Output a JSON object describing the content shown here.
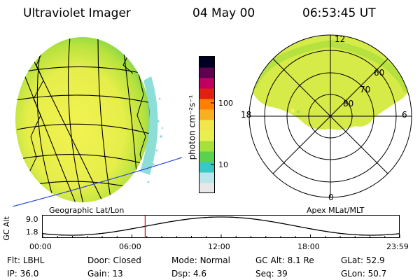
{
  "header": {
    "instrument": "Ultraviolet Imager",
    "date": "04 May 00",
    "time": "06:53:45 UT"
  },
  "globe": {
    "caption": "Geographic Lat/Lon"
  },
  "colorbar": {
    "unit_label": "photon cm⁻²s⁻¹",
    "ticks": [
      "100",
      "10"
    ],
    "stops": [
      "#e8e8e8",
      "#b8e6ea",
      "#38c8c8",
      "#5ad24e",
      "#a8e03a",
      "#e8f050",
      "#f0e84a",
      "#f8b020",
      "#ff7f00",
      "#e02010",
      "#c00060",
      "#600050",
      "#000020"
    ]
  },
  "polar": {
    "caption": "Apex MLat/MLT",
    "mlt_labels": {
      "top": "12",
      "right": "6",
      "bottom": "0",
      "left": "18"
    },
    "lat_labels": [
      "60",
      "70",
      "80"
    ]
  },
  "altitude": {
    "axis_label": "GC Alt",
    "y_ticks": [
      "9.0",
      "1.8"
    ],
    "x_ticks": [
      "00:00",
      "06:00",
      "12:00",
      "18:00",
      "23:59"
    ],
    "current_time_fraction": 0.287,
    "marker_color": "#e00000"
  },
  "info": {
    "row1": [
      {
        "label": "Flt:",
        "value": "LBHL"
      },
      {
        "label": "Door:",
        "value": "Closed"
      },
      {
        "label": "Mode:",
        "value": "Normal"
      },
      {
        "label": "GC Alt:",
        "value": "8.1 Re"
      },
      {
        "label": "GLat:",
        "value": "52.9"
      }
    ],
    "row2": [
      {
        "label": "IP:",
        "value": "36.0"
      },
      {
        "label": "Gain:",
        "value": "13"
      },
      {
        "label": "Dsp:",
        "value": "4.6"
      },
      {
        "label": "Seq:",
        "value": "39"
      },
      {
        "label": "GLon:",
        "value": "50.7"
      }
    ]
  }
}
